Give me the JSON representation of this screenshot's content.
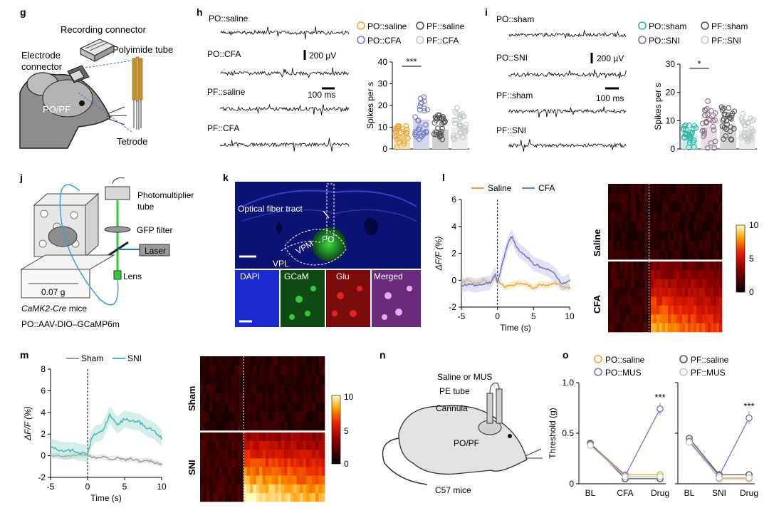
{
  "panels": {
    "g": {
      "letter": "g",
      "labels": [
        "Recording connector",
        "Polyimide tube",
        "Electrode",
        "connector",
        "PO/PF",
        "Tetrode"
      ]
    },
    "h": {
      "letter": "h",
      "traces": [
        "PO::saline",
        "PO::CFA",
        "PF::saline",
        "PF::CFA"
      ],
      "scale_v": "200 µV",
      "scale_t": "100 ms"
    },
    "i": {
      "letter": "i",
      "traces": [
        "PO::sham",
        "PO::SNI",
        "PF::sham",
        "PF::SNI"
      ],
      "scale_v": "200 µV",
      "scale_t": "100 ms"
    },
    "j": {
      "letter": "j",
      "labels": [
        "Photomultiplier",
        "tube",
        "GFP filter",
        "Laser",
        "Lens",
        "0.07 g"
      ],
      "caption_line1_italic": "CaMK2-Cre",
      "caption_line1_rest": " mice",
      "caption_line2": "PO::AAV-DIO–GCaMP6m"
    },
    "k": {
      "letter": "k",
      "labels": [
        "Optical fiber tract",
        "PO",
        "VPM",
        "VPL"
      ],
      "channels": [
        "DAPI",
        "GCaM",
        "Glu",
        "Merged"
      ]
    },
    "l": {
      "letter": "l",
      "legend": [
        "Saline",
        "CFA"
      ],
      "heatmap_labels": [
        "Saline",
        "CFA"
      ],
      "colorbar_ticks": [
        "10",
        "5",
        "0"
      ]
    },
    "m": {
      "letter": "m",
      "legend": [
        "Sham",
        "SNI"
      ],
      "heatmap_labels": [
        "Sham",
        "SNI"
      ],
      "colorbar_ticks": [
        "10",
        "5",
        "0"
      ]
    },
    "n": {
      "letter": "n",
      "labels": [
        "Saline or MUS",
        "PE tube",
        "Cannula",
        "PO/PF",
        "C57 mice"
      ]
    },
    "o": {
      "letter": "o",
      "legend": [
        "PO::saline",
        "PF::saline",
        "PO::MUS",
        "PF::MUS"
      ]
    }
  },
  "colors": {
    "po_saline": "#e8a73c",
    "po_cfa": "#7179c3",
    "pf_saline": "#555555",
    "pf_cfa": "#bfc8c4",
    "sham": "#9a9a9a",
    "sni": "#47b8b0",
    "teal_circles": "#2db6a8"
  },
  "chart_data": [
    {
      "id": "h",
      "type": "bar",
      "title": "",
      "ylabel": "Spikes per s",
      "ylim": [
        0,
        40
      ],
      "yticks": [
        0,
        10,
        20,
        30,
        40
      ],
      "categories": [
        "PO::saline",
        "PO::CFA",
        "PF::saline",
        "PF::CFA"
      ],
      "values": [
        6.5,
        13.5,
        9,
        10
      ],
      "legend": [
        "PO::saline",
        "PF::saline",
        "PO::CFA",
        "PF::CFA"
      ],
      "significance": "***"
    },
    {
      "id": "i",
      "type": "bar",
      "title": "",
      "ylabel": "Spikes per s",
      "ylim": [
        0,
        30
      ],
      "yticks": [
        0,
        10,
        20,
        30
      ],
      "categories": [
        "PO::sham",
        "PO::SNI",
        "PF::sham",
        "PF::SNI"
      ],
      "values": [
        5,
        8,
        8.5,
        6.5
      ],
      "legend": [
        "PO::sham",
        "PF::sham",
        "PO::SNI",
        "PF::SNI"
      ],
      "significance": "*"
    },
    {
      "id": "l",
      "type": "line",
      "xlabel": "Time (s)",
      "ylabel": "ΔF/F (%)",
      "xlim": [
        -5,
        10
      ],
      "ylim": [
        -2,
        6
      ],
      "xticks": [
        -5,
        0,
        5,
        10
      ],
      "yticks": [
        -2,
        0,
        2,
        4,
        6
      ],
      "series": [
        {
          "name": "Saline",
          "x": [
            -5,
            -4,
            -3,
            -2,
            -1,
            -0.3,
            0,
            1,
            2,
            3,
            4,
            5,
            6,
            7,
            8,
            9,
            10
          ],
          "values": [
            -0.2,
            0,
            -0.3,
            0,
            -0.2,
            0.3,
            0,
            -0.5,
            -0.4,
            -0.2,
            -0.3,
            -0.6,
            -0.3,
            -0.4,
            -0.2,
            -0.5,
            -0.6
          ]
        },
        {
          "name": "CFA",
          "x": [
            -5,
            -4,
            -3,
            -2,
            -1,
            -0.3,
            0,
            0.8,
            1.5,
            2,
            2.5,
            3,
            4,
            5,
            6,
            7,
            8,
            9,
            10
          ],
          "values": [
            -0.4,
            -0.3,
            -0.4,
            -0.3,
            -0.2,
            0.5,
            -0.2,
            1.5,
            2.8,
            3.3,
            2.6,
            2.2,
            1.8,
            1.2,
            1.0,
            0.8,
            0.4,
            -0.3,
            0
          ]
        }
      ],
      "event_x": 0
    },
    {
      "id": "m",
      "type": "line",
      "xlabel": "Time (s)",
      "ylabel": "ΔF/F (%)",
      "xlim": [
        -5,
        10
      ],
      "ylim": [
        -2,
        8
      ],
      "xticks": [
        -5,
        0,
        5,
        10
      ],
      "yticks": [
        -2,
        0,
        2,
        4,
        6,
        8
      ],
      "series": [
        {
          "name": "Sham",
          "x": [
            -5,
            -4,
            -3,
            -2,
            -1,
            0,
            1,
            2,
            3,
            4,
            5,
            6,
            7,
            8,
            9,
            10
          ],
          "values": [
            0,
            0,
            -0.1,
            0,
            0.1,
            0,
            -0.2,
            -0.1,
            -0.3,
            -0.2,
            -0.4,
            -0.3,
            -0.5,
            -0.4,
            -0.6,
            -0.8
          ]
        },
        {
          "name": "SNI",
          "x": [
            -5,
            -4,
            -3,
            -2,
            -1,
            0,
            0.5,
            1,
            2,
            3,
            4,
            5,
            6,
            7,
            8,
            9,
            10
          ],
          "values": [
            0.8,
            0.6,
            0.4,
            0.5,
            0.3,
            0.2,
            1.5,
            2.0,
            2.2,
            3.8,
            2.8,
            3.4,
            3.2,
            3.1,
            2.6,
            2.3,
            1.6
          ]
        }
      ],
      "event_x": 0
    },
    {
      "id": "o_left",
      "type": "line",
      "ylabel": "Threshold (g)",
      "ylim": [
        0,
        1.0
      ],
      "yticks": [
        0,
        0.5,
        1.0
      ],
      "categories": [
        "BL",
        "CFA",
        "Drug"
      ],
      "series": [
        {
          "name": "PO::saline",
          "values": [
            0.4,
            0.09,
            0.09
          ]
        },
        {
          "name": "PF::saline",
          "values": [
            0.4,
            0.05,
            0.05
          ]
        },
        {
          "name": "PO::MUS",
          "values": [
            0.39,
            0.08,
            0.74
          ]
        },
        {
          "name": "PF::MUS",
          "values": [
            0.38,
            0.07,
            0.07
          ]
        }
      ],
      "significance": "***"
    },
    {
      "id": "o_right",
      "type": "line",
      "ylim": [
        0,
        1.0
      ],
      "categories": [
        "BL",
        "SNI",
        "Drug"
      ],
      "series": [
        {
          "name": "PO::saline",
          "values": [
            0.43,
            0.05,
            0.05
          ]
        },
        {
          "name": "PF::saline",
          "values": [
            0.45,
            0.09,
            0.09
          ]
        },
        {
          "name": "PO::MUS",
          "values": [
            0.42,
            0.08,
            0.65
          ]
        },
        {
          "name": "PF::MUS",
          "values": [
            0.41,
            0.06,
            0.06
          ]
        }
      ],
      "significance": "***"
    }
  ]
}
